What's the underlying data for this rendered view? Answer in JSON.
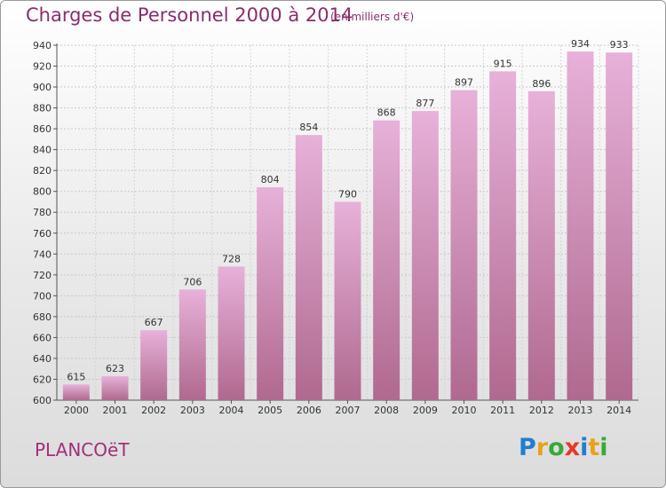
{
  "header": {
    "title": "Charges de Personnel 2000 à 2014",
    "unit_note": "(en milliers d'€)"
  },
  "footer": {
    "commune": "PLANCOëT",
    "logo_letters": [
      "P",
      "r",
      "o",
      "x",
      "i",
      "t",
      "i"
    ],
    "logo_colors": [
      "#1e7fd0",
      "#e8a21a",
      "#3aa83a",
      "#e23a2a",
      "#1e7fd0",
      "#e8a21a",
      "#3aa83a"
    ]
  },
  "colors": {
    "bar_top": "#e7b1d9",
    "bar_bottom": "#b0698f",
    "text": "#333333",
    "accent": "#8a2d6b"
  },
  "chart_data": {
    "type": "bar",
    "categories": [
      "2000",
      "2001",
      "2002",
      "2003",
      "2004",
      "2005",
      "2006",
      "2007",
      "2008",
      "2009",
      "2010",
      "2011",
      "2012",
      "2013",
      "2014"
    ],
    "values": [
      615,
      623,
      667,
      706,
      728,
      804,
      854,
      790,
      868,
      877,
      897,
      915,
      896,
      934,
      933
    ],
    "title": "Charges de Personnel 2000 à 2014",
    "subtitle": "(en milliers d'€)",
    "xlabel": "",
    "ylabel": "",
    "ylim": [
      600,
      940
    ],
    "yticks": [
      600,
      620,
      640,
      660,
      680,
      700,
      720,
      740,
      760,
      780,
      800,
      820,
      840,
      860,
      880,
      900,
      920,
      940
    ],
    "grid": true,
    "data_labels": true
  }
}
